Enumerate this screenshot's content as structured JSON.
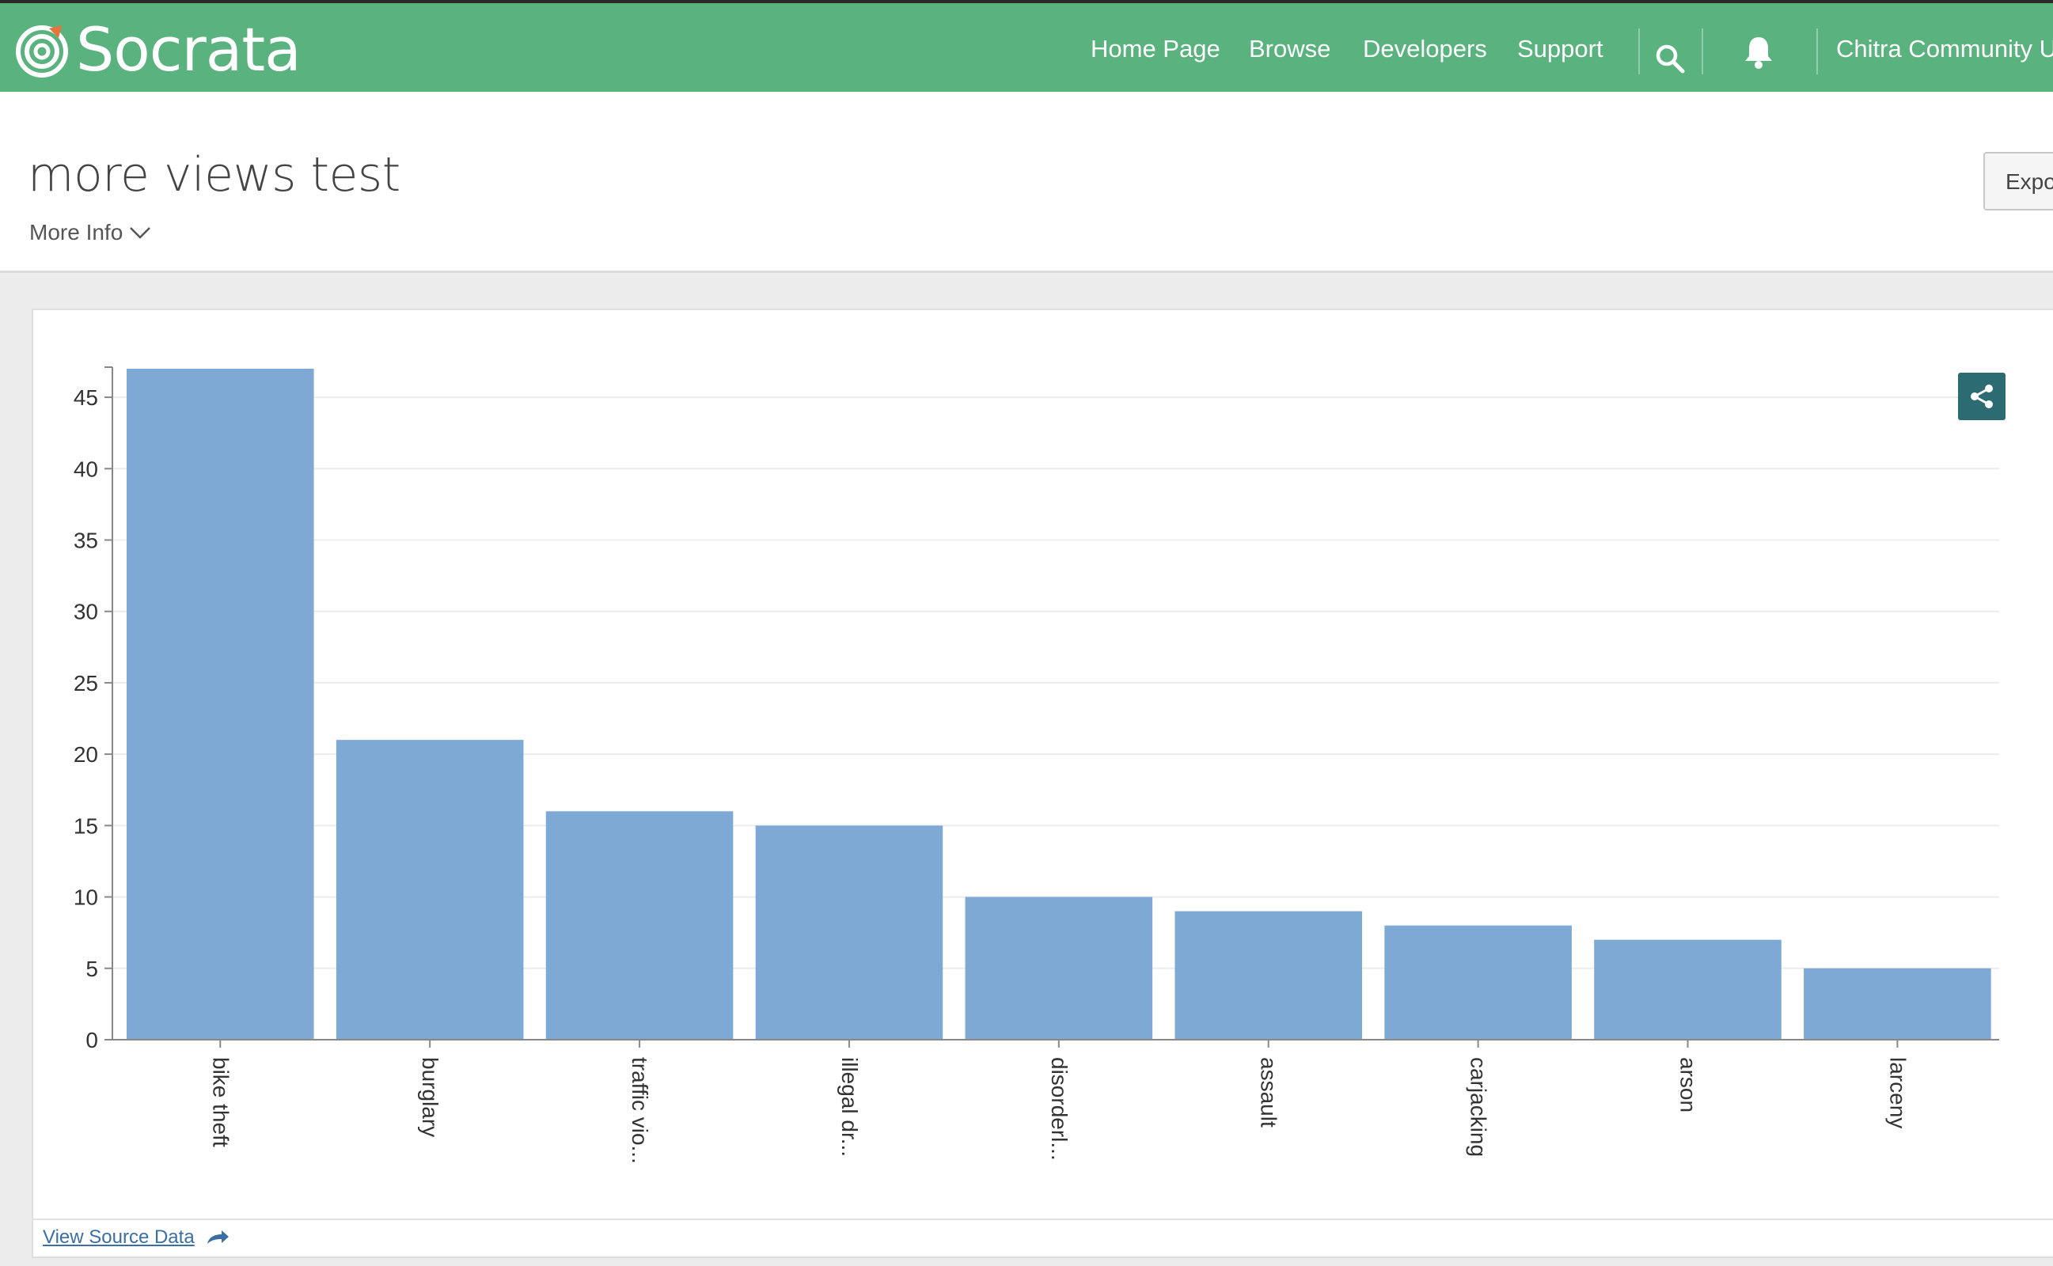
{
  "header": {
    "brand": "Socrata",
    "nav": {
      "home": "Home Page",
      "browse": "Browse",
      "developers": "Developers",
      "support": "Support",
      "user": "Chitra Community U"
    },
    "icons": {
      "search": "search-icon",
      "notifications": "bell-icon",
      "logo": "socrata-logo-icon"
    },
    "brand_color": "#5ab27e"
  },
  "page": {
    "title": "more views test",
    "more_info": "More Info",
    "export_label": "Expo"
  },
  "chart": {
    "share_icon": "share-icon",
    "view_source": "View Source Data"
  },
  "chart_data": {
    "type": "bar",
    "categories": [
      "bike theft",
      "burglary",
      "traffic vio...",
      "illegal dr...",
      "disorderl...",
      "assault",
      "carjacking",
      "arson",
      "larceny"
    ],
    "values": [
      47,
      21,
      16,
      15,
      10,
      9,
      8,
      7,
      5
    ],
    "yticks": [
      0,
      5,
      10,
      15,
      20,
      25,
      30,
      35,
      40,
      45
    ],
    "ylim": [
      0,
      47
    ],
    "grid": true,
    "bar_color": "#7ea9d5"
  }
}
